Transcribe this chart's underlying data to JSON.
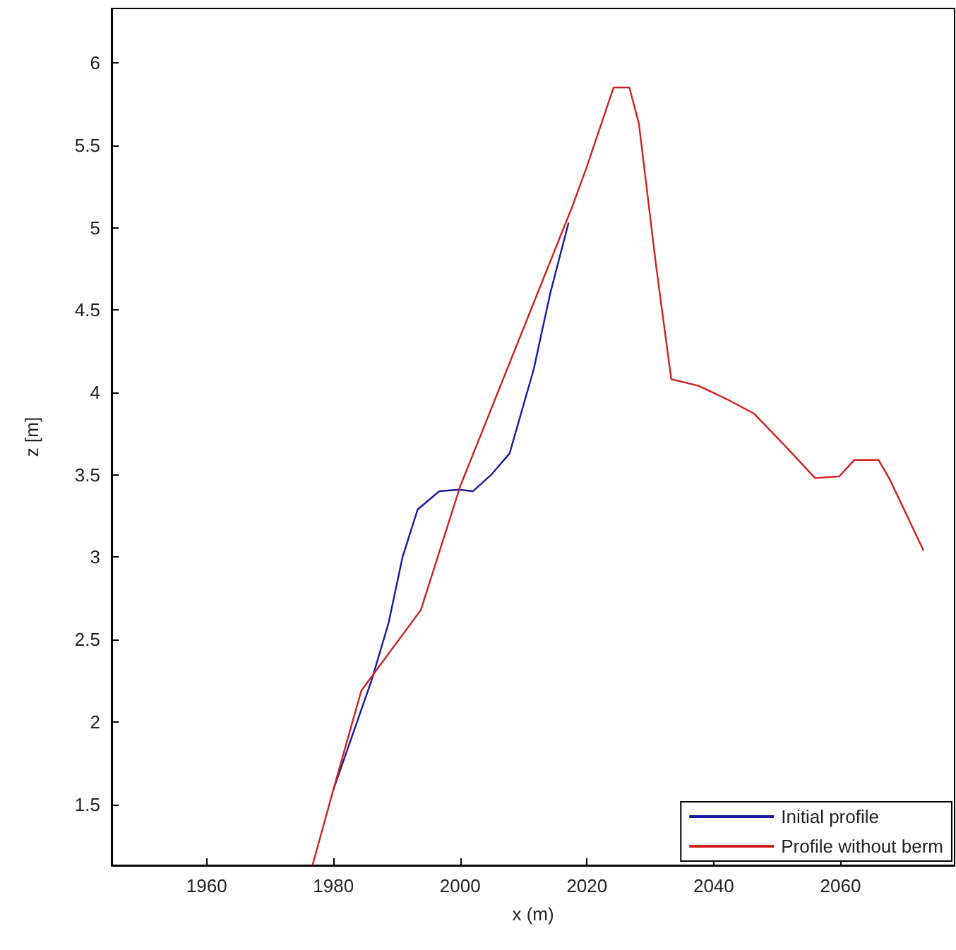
{
  "chart_data": {
    "type": "line",
    "xlabel": "x (m)",
    "ylabel": "z [m]",
    "xlim": [
      1945,
      2078
    ],
    "xticks": [
      1960,
      1980,
      2000,
      2020,
      2040,
      2060
    ],
    "ylim": [
      1.13,
      6.33
    ],
    "yticks": [
      1.5,
      2,
      2.5,
      3,
      3.5,
      4,
      4.5,
      5,
      5.5,
      6
    ],
    "grid": false,
    "legend": "bottom right",
    "marker": "none",
    "line_style": "solid",
    "series": [
      {
        "name": "Initial profile",
        "color": "#1a1aa0",
        "x": [
          1980,
          1986,
          1988.7,
          1990.9,
          1993.3,
          1996.7,
          1999.8,
          2002,
          2004.9,
          2007.8,
          2011.6,
          2014.2,
          2017.1
        ],
        "values": [
          1.59,
          2.25,
          2.6,
          3.0,
          3.29,
          3.4,
          3.41,
          3.4,
          3.5,
          3.63,
          4.14,
          4.6,
          5.03
        ]
      },
      {
        "name": "Profile without berm",
        "color": "#d02020",
        "x": [
          1976.7,
          1980,
          1984.4,
          1993.8,
          2000,
          2017.6,
          2019.8,
          2024.2,
          2026.7,
          2028.2,
          2030.9,
          2033.3,
          2037.6,
          2042,
          2046.4,
          2050.9,
          2056,
          2059.8,
          2062.2,
          2066,
          2067.8,
          2073.1
        ],
        "values": [
          1.13,
          1.59,
          2.19,
          2.68,
          3.43,
          5.12,
          5.35,
          5.85,
          5.85,
          5.63,
          4.77,
          4.08,
          4.04,
          3.96,
          3.87,
          3.69,
          3.48,
          3.49,
          3.59,
          3.59,
          3.47,
          3.04
        ]
      }
    ]
  }
}
